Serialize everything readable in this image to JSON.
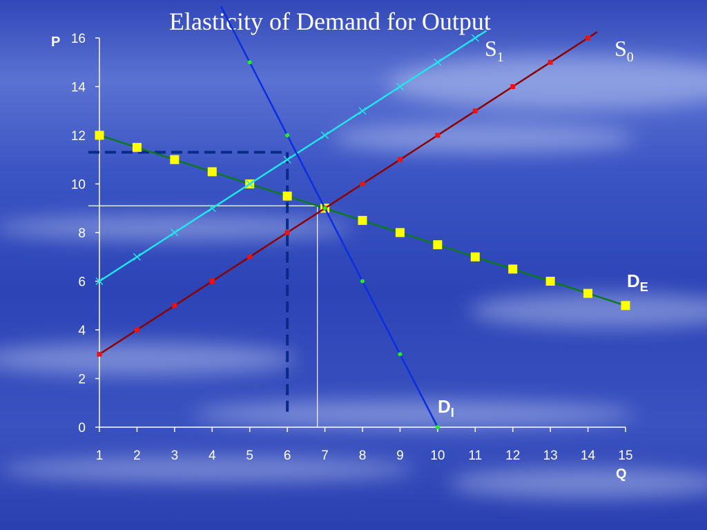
{
  "title": "Elasticity of Demand for Output",
  "chart_data": {
    "type": "line",
    "xlabel": "Q",
    "ylabel": "P",
    "xlim": [
      1,
      15
    ],
    "ylim": [
      0,
      16
    ],
    "x_ticks": [
      "1",
      "2",
      "3",
      "4",
      "5",
      "6",
      "7",
      "8",
      "9",
      "10",
      "11",
      "12",
      "13",
      "14",
      "15"
    ],
    "y_ticks": [
      "0",
      "2",
      "4",
      "6",
      "8",
      "10",
      "12",
      "14",
      "16"
    ],
    "series": [
      {
        "name": "S1",
        "label_main": "S",
        "label_sub": "1",
        "color": "#22e5ee",
        "marker": "x",
        "points": [
          [
            1,
            6
          ],
          [
            2,
            7
          ],
          [
            3,
            8
          ],
          [
            4,
            9
          ],
          [
            5,
            10
          ],
          [
            6,
            11
          ],
          [
            7,
            12
          ],
          [
            8,
            13
          ],
          [
            9,
            14
          ],
          [
            10,
            15
          ],
          [
            11,
            16
          ]
        ]
      },
      {
        "name": "S0",
        "label_main": "S",
        "label_sub": "0",
        "color": "#8b0000",
        "marker_color": "#ee1111",
        "marker": "square",
        "points": [
          [
            1,
            3
          ],
          [
            2,
            4
          ],
          [
            3,
            5
          ],
          [
            4,
            6
          ],
          [
            5,
            7
          ],
          [
            6,
            8
          ],
          [
            7,
            9
          ],
          [
            8,
            10
          ],
          [
            9,
            11
          ],
          [
            10,
            12
          ],
          [
            11,
            13
          ],
          [
            12,
            14
          ],
          [
            13,
            15
          ],
          [
            14,
            16
          ]
        ]
      },
      {
        "name": "DI",
        "label_main": "D",
        "label_sub": "I",
        "color": "#0a2ee0",
        "marker_color": "#22ee22",
        "marker": "dot",
        "points": [
          [
            5,
            15
          ],
          [
            6,
            12
          ],
          [
            7,
            9
          ],
          [
            8,
            6
          ],
          [
            9,
            3
          ],
          [
            10,
            0
          ]
        ]
      },
      {
        "name": "DE",
        "label_main": "D",
        "label_sub": "E",
        "color": "#0b7a1e",
        "marker_color": "#ffff00",
        "marker": "square-large",
        "points": [
          [
            1,
            12
          ],
          [
            2,
            11.5
          ],
          [
            3,
            11
          ],
          [
            4,
            10.5
          ],
          [
            5,
            10
          ],
          [
            6,
            9.5
          ],
          [
            7,
            9
          ],
          [
            8,
            8.5
          ],
          [
            9,
            8
          ],
          [
            10,
            7.5
          ],
          [
            11,
            7
          ],
          [
            12,
            6.5
          ],
          [
            13,
            6
          ],
          [
            14,
            5.5
          ],
          [
            15,
            5
          ]
        ]
      }
    ],
    "reference_lines": [
      {
        "style": "solid",
        "color": "#ffffff",
        "price": 9.1,
        "quantity": 6.8
      },
      {
        "style": "dashed",
        "color": "#0a2a8a",
        "price": 11.3,
        "quantity": 6
      }
    ]
  }
}
